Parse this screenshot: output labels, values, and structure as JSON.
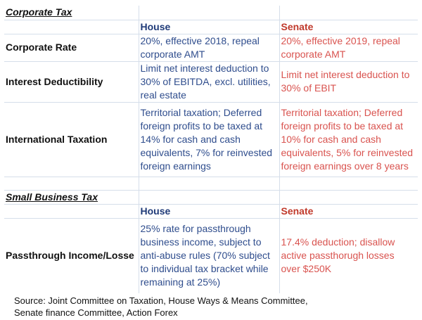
{
  "sections": [
    {
      "title": "Corporate Tax",
      "house_header": "House",
      "senate_header": "Senate",
      "rows": [
        {
          "label": "Corporate Rate",
          "house": [
            "20%, effective 2018, repeal",
            "corporate AMT"
          ],
          "senate": [
            "20%, effective 2019, repeal",
            "corporate AMT"
          ]
        },
        {
          "label": "Interest Deductibility",
          "house": [
            "Limit net interest deduction to",
            "30% of EBITDA, excl. utilities,",
            "real estate"
          ],
          "senate": [
            "Limit net interest deduction to",
            "30% of EBIT"
          ]
        },
        {
          "label": "International Taxation",
          "house": [
            "Territorial taxation; Deferred",
            "foreign profits to be taxed at",
            "14% for cash and cash",
            "equivalents, 7% for reinvested",
            "foreign earnings"
          ],
          "senate": [
            "Territorial taxation; Deferred",
            "foreign profits to be taxed at",
            "10% for cash and cash",
            "equivalents, 5% for reinvested",
            "foreign earnings over 8 years"
          ]
        }
      ]
    },
    {
      "title": "Small Business Tax",
      "house_header": "House",
      "senate_header": "Senate",
      "rows": [
        {
          "label": "Passthrough Income/Losse",
          "house": [
            "25% rate for passthrough",
            "business income, subject to",
            "anti-abuse rules (70% subject",
            "to individual tax bracket while",
            "remaining at 25%)"
          ],
          "senate": [
            "17.4% deduction; disallow",
            "active passthorugh losses",
            "over $250K"
          ]
        }
      ]
    }
  ],
  "source": [
    "Source: Joint Committee on Taxation, House Ways & Means Committee,",
    "Senate finance Committee, Action Forex"
  ],
  "colors": {
    "house": "#2f4d8d",
    "senate": "#d9534f",
    "grid": "#d5deea"
  }
}
